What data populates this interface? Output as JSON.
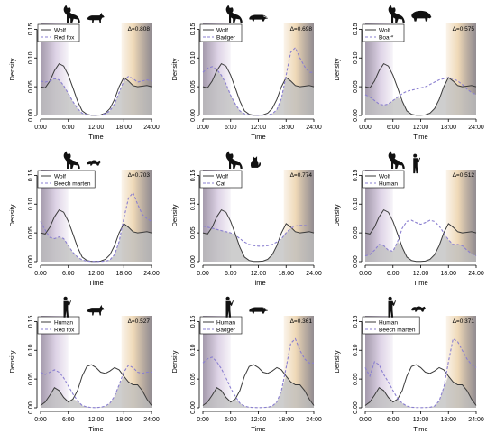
{
  "colors": {
    "reference_line": "#3a3a3a",
    "comparison_line": "#8a7fd0",
    "overlap_fill": "#bdbdbd",
    "twilight_purple": "#c8b6d6",
    "twilight_orange": "#e8c898",
    "night_shade": "#000000"
  },
  "chart_data": [
    {
      "type": "line",
      "title": "",
      "xlabel": "Time",
      "ylabel": "Density",
      "x": [
        0,
        1,
        2,
        3,
        4,
        5,
        6,
        7,
        8,
        9,
        10,
        11,
        12,
        13,
        14,
        15,
        16,
        17,
        18,
        19,
        20,
        21,
        22,
        23,
        24
      ],
      "x_ticks": [
        "0:00",
        "6:00",
        "12:00",
        "18:00",
        "24:00"
      ],
      "y_ticks": [
        "0.00",
        "0.05",
        "0.10",
        "0.15"
      ],
      "ylim": [
        0,
        0.16
      ],
      "overlap_label": "Δ=0.808",
      "icons": [
        "wolf-silhouette-icon",
        "fox-silhouette-icon"
      ],
      "series": [
        {
          "name": "Wolf",
          "style": "solid",
          "values": [
            0.05,
            0.048,
            0.06,
            0.078,
            0.09,
            0.086,
            0.07,
            0.048,
            0.025,
            0.008,
            0.002,
            0.0005,
            0.0003,
            0.001,
            0.004,
            0.012,
            0.028,
            0.05,
            0.066,
            0.06,
            0.052,
            0.05,
            0.051,
            0.052,
            0.05
          ]
        },
        {
          "name": "Red fox",
          "style": "dashed",
          "values": [
            0.06,
            0.058,
            0.06,
            0.064,
            0.062,
            0.052,
            0.038,
            0.024,
            0.012,
            0.004,
            0.0015,
            0.0005,
            0.0003,
            0.001,
            0.003,
            0.008,
            0.02,
            0.04,
            0.06,
            0.068,
            0.064,
            0.058,
            0.06,
            0.062,
            0.06
          ]
        }
      ]
    },
    {
      "type": "line",
      "title": "",
      "xlabel": "Time",
      "ylabel": "Density",
      "x": [
        0,
        1,
        2,
        3,
        4,
        5,
        6,
        7,
        8,
        9,
        10,
        11,
        12,
        13,
        14,
        15,
        16,
        17,
        18,
        19,
        20,
        21,
        22,
        23,
        24
      ],
      "x_ticks": [
        "0:00",
        "6:00",
        "12:00",
        "18:00",
        "24:00"
      ],
      "y_ticks": [
        "0.00",
        "0.05",
        "0.10",
        "0.15"
      ],
      "ylim": [
        0,
        0.16
      ],
      "overlap_label": "Δ=0.698",
      "icons": [
        "wolf-silhouette-icon",
        "badger-silhouette-icon"
      ],
      "series": [
        {
          "name": "Wolf",
          "style": "solid",
          "values": [
            0.05,
            0.048,
            0.06,
            0.078,
            0.09,
            0.086,
            0.07,
            0.048,
            0.025,
            0.008,
            0.002,
            0.0005,
            0.0003,
            0.001,
            0.004,
            0.012,
            0.028,
            0.05,
            0.066,
            0.06,
            0.052,
            0.05,
            0.051,
            0.052,
            0.05
          ]
        },
        {
          "name": "Badger",
          "style": "dashed",
          "values": [
            0.075,
            0.082,
            0.085,
            0.08,
            0.07,
            0.055,
            0.035,
            0.02,
            0.008,
            0.003,
            0.001,
            0.0005,
            0.0003,
            0.0005,
            0.001,
            0.003,
            0.01,
            0.03,
            0.07,
            0.11,
            0.118,
            0.1,
            0.085,
            0.075,
            0.075
          ]
        }
      ]
    },
    {
      "type": "line",
      "title": "",
      "xlabel": "Time",
      "ylabel": "Density",
      "x": [
        0,
        1,
        2,
        3,
        4,
        5,
        6,
        7,
        8,
        9,
        10,
        11,
        12,
        13,
        14,
        15,
        16,
        17,
        18,
        19,
        20,
        21,
        22,
        23,
        24
      ],
      "x_ticks": [
        "0:00",
        "6:00",
        "12:00",
        "18:00",
        "24:00"
      ],
      "y_ticks": [
        "0.00",
        "0.05",
        "0.10",
        "0.15"
      ],
      "ylim": [
        0,
        0.16
      ],
      "overlap_label": "Δ=0.575",
      "icons": [
        "wolf-silhouette-icon",
        "boar-silhouette-icon"
      ],
      "series": [
        {
          "name": "Wolf",
          "style": "solid",
          "values": [
            0.05,
            0.048,
            0.06,
            0.078,
            0.09,
            0.086,
            0.07,
            0.048,
            0.025,
            0.008,
            0.002,
            0.0005,
            0.0003,
            0.001,
            0.004,
            0.012,
            0.028,
            0.05,
            0.066,
            0.06,
            0.052,
            0.05,
            0.051,
            0.052,
            0.05
          ]
        },
        {
          "name": "Boar*",
          "style": "dashed",
          "values": [
            0.036,
            0.032,
            0.026,
            0.02,
            0.018,
            0.02,
            0.026,
            0.032,
            0.038,
            0.042,
            0.044,
            0.046,
            0.048,
            0.05,
            0.054,
            0.058,
            0.062,
            0.064,
            0.066,
            0.064,
            0.06,
            0.054,
            0.046,
            0.04,
            0.036
          ]
        }
      ]
    },
    {
      "type": "line",
      "title": "",
      "xlabel": "Time",
      "ylabel": "Density",
      "x": [
        0,
        1,
        2,
        3,
        4,
        5,
        6,
        7,
        8,
        9,
        10,
        11,
        12,
        13,
        14,
        15,
        16,
        17,
        18,
        19,
        20,
        21,
        22,
        23,
        24
      ],
      "x_ticks": [
        "0:00",
        "6:00",
        "12:00",
        "18:00",
        "24:00"
      ],
      "y_ticks": [
        "0.00",
        "0.05",
        "0.10",
        "0.15"
      ],
      "ylim": [
        0,
        0.16
      ],
      "overlap_label": "Δ=0.703",
      "icons": [
        "wolf-silhouette-icon",
        "marten-silhouette-icon"
      ],
      "series": [
        {
          "name": "Wolf",
          "style": "solid",
          "values": [
            0.05,
            0.048,
            0.06,
            0.078,
            0.09,
            0.086,
            0.07,
            0.048,
            0.025,
            0.008,
            0.002,
            0.0005,
            0.0003,
            0.001,
            0.004,
            0.012,
            0.028,
            0.05,
            0.066,
            0.06,
            0.052,
            0.05,
            0.051,
            0.052,
            0.05
          ]
        },
        {
          "name": "Beech marten",
          "style": "dashed",
          "values": [
            0.07,
            0.055,
            0.042,
            0.04,
            0.043,
            0.04,
            0.028,
            0.016,
            0.008,
            0.003,
            0.001,
            0.0005,
            0.0003,
            0.0005,
            0.001,
            0.003,
            0.012,
            0.035,
            0.075,
            0.11,
            0.12,
            0.1,
            0.082,
            0.075,
            0.07
          ]
        }
      ]
    },
    {
      "type": "line",
      "title": "",
      "xlabel": "Time",
      "ylabel": "Density",
      "x": [
        0,
        1,
        2,
        3,
        4,
        5,
        6,
        7,
        8,
        9,
        10,
        11,
        12,
        13,
        14,
        15,
        16,
        17,
        18,
        19,
        20,
        21,
        22,
        23,
        24
      ],
      "x_ticks": [
        "0:00",
        "6:00",
        "12:00",
        "18:00",
        "24:00"
      ],
      "y_ticks": [
        "0.00",
        "0.05",
        "0.10",
        "0.15"
      ],
      "ylim": [
        0,
        0.16
      ],
      "overlap_label": "Δ=0.774",
      "icons": [
        "wolf-silhouette-icon",
        "cat-silhouette-icon"
      ],
      "series": [
        {
          "name": "Wolf",
          "style": "solid",
          "values": [
            0.05,
            0.048,
            0.06,
            0.078,
            0.09,
            0.086,
            0.07,
            0.048,
            0.025,
            0.008,
            0.002,
            0.0005,
            0.0003,
            0.001,
            0.004,
            0.012,
            0.028,
            0.05,
            0.066,
            0.06,
            0.052,
            0.05,
            0.051,
            0.052,
            0.05
          ]
        },
        {
          "name": "Cat",
          "style": "dashed",
          "values": [
            0.062,
            0.06,
            0.058,
            0.056,
            0.054,
            0.052,
            0.05,
            0.046,
            0.04,
            0.034,
            0.03,
            0.028,
            0.027,
            0.027,
            0.028,
            0.03,
            0.034,
            0.04,
            0.05,
            0.058,
            0.062,
            0.063,
            0.063,
            0.062,
            0.062
          ]
        }
      ]
    },
    {
      "type": "line",
      "title": "",
      "xlabel": "Time",
      "ylabel": "Density",
      "x": [
        0,
        1,
        2,
        3,
        4,
        5,
        6,
        7,
        8,
        9,
        10,
        11,
        12,
        13,
        14,
        15,
        16,
        17,
        18,
        19,
        20,
        21,
        22,
        23,
        24
      ],
      "x_ticks": [
        "0:00",
        "6:00",
        "12:00",
        "18:00",
        "24:00"
      ],
      "y_ticks": [
        "0.00",
        "0.05",
        "0.10",
        "0.15"
      ],
      "ylim": [
        0,
        0.16
      ],
      "overlap_label": "Δ=0.512",
      "icons": [
        "wolf-silhouette-icon",
        "human-silhouette-icon"
      ],
      "series": [
        {
          "name": "Wolf",
          "style": "solid",
          "values": [
            0.05,
            0.048,
            0.06,
            0.078,
            0.09,
            0.086,
            0.07,
            0.048,
            0.025,
            0.008,
            0.002,
            0.0005,
            0.0003,
            0.001,
            0.004,
            0.012,
            0.028,
            0.05,
            0.066,
            0.06,
            0.052,
            0.05,
            0.051,
            0.052,
            0.05
          ]
        },
        {
          "name": "Human",
          "style": "dashed",
          "values": [
            0.01,
            0.012,
            0.02,
            0.03,
            0.028,
            0.02,
            0.018,
            0.035,
            0.058,
            0.07,
            0.072,
            0.068,
            0.065,
            0.068,
            0.072,
            0.07,
            0.062,
            0.05,
            0.038,
            0.03,
            0.03,
            0.028,
            0.02,
            0.014,
            0.01
          ]
        }
      ]
    },
    {
      "type": "line",
      "title": "",
      "xlabel": "Time",
      "ylabel": "Density",
      "x": [
        0,
        1,
        2,
        3,
        4,
        5,
        6,
        7,
        8,
        9,
        10,
        11,
        12,
        13,
        14,
        15,
        16,
        17,
        18,
        19,
        20,
        21,
        22,
        23,
        24
      ],
      "x_ticks": [
        "0:00",
        "6:00",
        "12:00",
        "18:00",
        "24:00"
      ],
      "y_ticks": [
        "0.00",
        "0.05",
        "0.10",
        "0.15"
      ],
      "ylim": [
        0,
        0.16
      ],
      "overlap_label": "Δ=0.527",
      "icons": [
        "human-silhouette-icon",
        "fox-silhouette-icon"
      ],
      "series": [
        {
          "name": "Human",
          "style": "solid",
          "values": [
            0.004,
            0.01,
            0.022,
            0.035,
            0.03,
            0.018,
            0.01,
            0.015,
            0.03,
            0.055,
            0.072,
            0.075,
            0.07,
            0.062,
            0.06,
            0.064,
            0.07,
            0.066,
            0.055,
            0.045,
            0.04,
            0.04,
            0.03,
            0.015,
            0.004
          ]
        },
        {
          "name": "Red fox",
          "style": "dashed",
          "values": [
            0.062,
            0.058,
            0.062,
            0.066,
            0.062,
            0.052,
            0.038,
            0.024,
            0.012,
            0.004,
            0.0015,
            0.0005,
            0.0003,
            0.001,
            0.003,
            0.008,
            0.02,
            0.04,
            0.062,
            0.074,
            0.07,
            0.062,
            0.06,
            0.062,
            0.062
          ]
        }
      ]
    },
    {
      "type": "line",
      "title": "",
      "xlabel": "Time",
      "ylabel": "Density",
      "x": [
        0,
        1,
        2,
        3,
        4,
        5,
        6,
        7,
        8,
        9,
        10,
        11,
        12,
        13,
        14,
        15,
        16,
        17,
        18,
        19,
        20,
        21,
        22,
        23,
        24
      ],
      "x_ticks": [
        "0:00",
        "6:00",
        "12:00",
        "18:00",
        "24:00"
      ],
      "y_ticks": [
        "0.00",
        "0.05",
        "0.10",
        "0.15"
      ],
      "ylim": [
        0,
        0.16
      ],
      "overlap_label": "Δ=0.361",
      "icons": [
        "human-silhouette-icon",
        "badger-silhouette-icon"
      ],
      "series": [
        {
          "name": "Human",
          "style": "solid",
          "values": [
            0.004,
            0.01,
            0.022,
            0.035,
            0.03,
            0.018,
            0.01,
            0.015,
            0.03,
            0.055,
            0.072,
            0.075,
            0.07,
            0.062,
            0.06,
            0.064,
            0.07,
            0.066,
            0.055,
            0.045,
            0.04,
            0.04,
            0.03,
            0.015,
            0.004
          ]
        },
        {
          "name": "Badger",
          "style": "dashed",
          "values": [
            0.078,
            0.085,
            0.088,
            0.08,
            0.068,
            0.052,
            0.034,
            0.02,
            0.008,
            0.003,
            0.001,
            0.0005,
            0.0003,
            0.0005,
            0.001,
            0.003,
            0.01,
            0.03,
            0.07,
            0.112,
            0.12,
            0.1,
            0.085,
            0.078,
            0.078
          ]
        }
      ]
    },
    {
      "type": "line",
      "title": "",
      "xlabel": "Time",
      "ylabel": "Density",
      "x": [
        0,
        1,
        2,
        3,
        4,
        5,
        6,
        7,
        8,
        9,
        10,
        11,
        12,
        13,
        14,
        15,
        16,
        17,
        18,
        19,
        20,
        21,
        22,
        23,
        24
      ],
      "x_ticks": [
        "0:00",
        "6:00",
        "12:00",
        "18:00",
        "24:00"
      ],
      "y_ticks": [
        "0.00",
        "0.05",
        "0.10",
        "0.15"
      ],
      "ylim": [
        0,
        0.16
      ],
      "overlap_label": "Δ=0.371",
      "icons": [
        "human-silhouette-icon",
        "marten-silhouette-icon"
      ],
      "series": [
        {
          "name": "Human",
          "style": "solid",
          "values": [
            0.004,
            0.01,
            0.022,
            0.035,
            0.03,
            0.018,
            0.01,
            0.015,
            0.03,
            0.055,
            0.072,
            0.075,
            0.07,
            0.062,
            0.06,
            0.064,
            0.07,
            0.066,
            0.055,
            0.045,
            0.04,
            0.04,
            0.03,
            0.015,
            0.004
          ]
        },
        {
          "name": "Beech marten",
          "style": "dashed",
          "values": [
            0.07,
            0.055,
            0.08,
            0.075,
            0.058,
            0.045,
            0.03,
            0.016,
            0.008,
            0.003,
            0.001,
            0.0005,
            0.0003,
            0.0005,
            0.001,
            0.003,
            0.012,
            0.035,
            0.08,
            0.12,
            0.115,
            0.1,
            0.085,
            0.075,
            0.07
          ]
        }
      ]
    }
  ]
}
